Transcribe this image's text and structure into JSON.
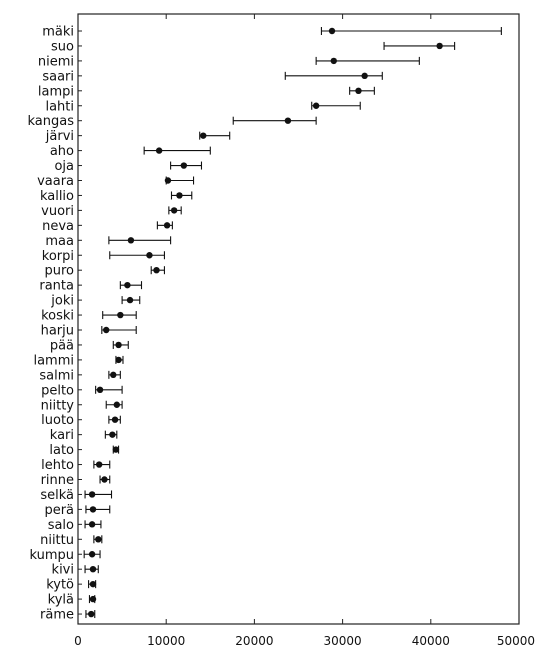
{
  "chart_data": {
    "type": "scatter",
    "subtype": "dot-with-error-bars",
    "title": "",
    "xlabel": "",
    "ylabel": "",
    "xlim": [
      0,
      50000
    ],
    "x_ticks": [
      0,
      10000,
      20000,
      30000,
      40000,
      50000
    ],
    "x_tick_labels": [
      "0",
      "10000",
      "20000",
      "30000",
      "40000",
      "50000"
    ],
    "grid": false,
    "legend": "none",
    "colors": {
      "marker": "#111111",
      "axis": "#222222",
      "background": "#ffffff"
    },
    "categories": [
      "mäki",
      "suo",
      "niemi",
      "saari",
      "lampi",
      "lahti",
      "kangas",
      "järvi",
      "aho",
      "oja",
      "vaara",
      "kallio",
      "vuori",
      "neva",
      "maa",
      "korpi",
      "puro",
      "ranta",
      "joki",
      "koski",
      "harju",
      "pää",
      "lammi",
      "salmi",
      "pelto",
      "niitty",
      "luoto",
      "kari",
      "lato",
      "lehto",
      "rinne",
      "selkä",
      "perä",
      "salo",
      "niittu",
      "kumpu",
      "kivi",
      "kytö",
      "kylä",
      "räme"
    ],
    "series": [
      {
        "values": [
          28800,
          41000,
          29000,
          32500,
          31800,
          27000,
          23800,
          14200,
          9200,
          12000,
          10200,
          11500,
          10900,
          10100,
          6000,
          8100,
          8900,
          5600,
          5900,
          4800,
          3200,
          4600,
          4600,
          4000,
          2500,
          4400,
          4200,
          3900,
          4300,
          2400,
          3000,
          1600,
          1700,
          1600,
          2300,
          1600,
          1700,
          1700,
          1700,
          1500
        ],
        "lower": [
          27600,
          34700,
          27000,
          23500,
          30800,
          26500,
          17600,
          13800,
          7500,
          10500,
          10000,
          10600,
          10300,
          9000,
          3500,
          3600,
          8300,
          4800,
          5000,
          2800,
          2700,
          4000,
          4300,
          3500,
          2000,
          3200,
          3500,
          3100,
          4000,
          1800,
          2500,
          800,
          900,
          800,
          1800,
          700,
          800,
          1200,
          1300,
          900
        ],
        "upper": [
          48000,
          42700,
          38700,
          34500,
          33600,
          32000,
          27000,
          17200,
          15000,
          14000,
          13100,
          12900,
          11700,
          10700,
          10500,
          9800,
          9800,
          7200,
          7000,
          6600,
          6600,
          5700,
          5100,
          4800,
          5000,
          5000,
          4800,
          4400,
          4600,
          3600,
          3600,
          3800,
          3600,
          2600,
          2700,
          2500,
          2300,
          2000,
          1900,
          1900
        ]
      }
    ]
  }
}
